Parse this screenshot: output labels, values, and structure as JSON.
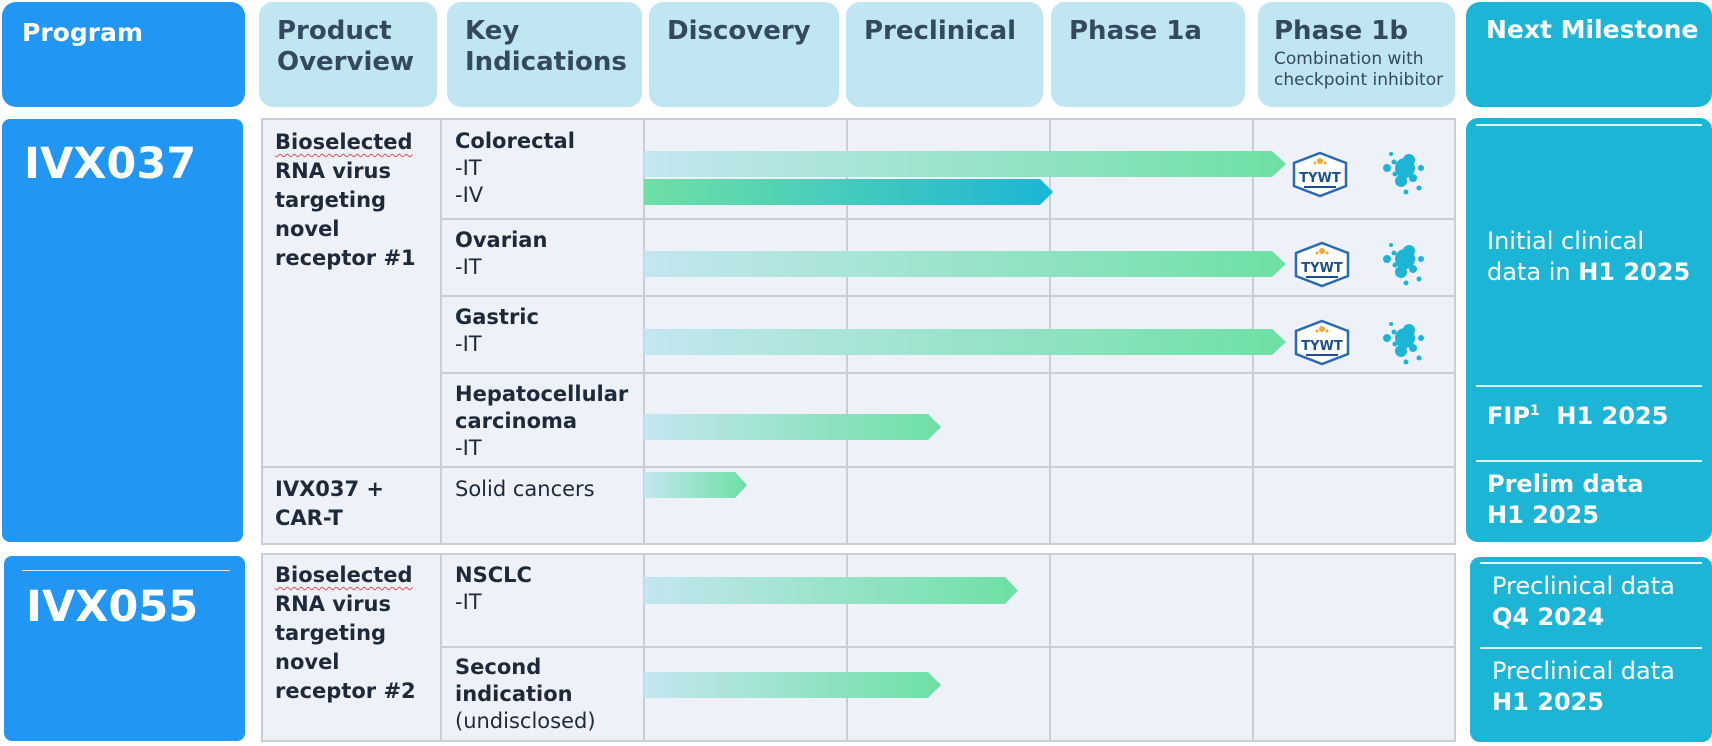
{
  "header": {
    "program": "Program",
    "product_overview": "Product Overview",
    "key_indications": "Key Indications",
    "discovery": "Discovery",
    "preclinical": "Preclinical",
    "phase1a": "Phase 1a",
    "phase1b": "Phase 1b",
    "phase1b_sub": "Combination with checkpoint inhibitor",
    "next_milestone": "Next Milestone"
  },
  "programs": [
    {
      "name": "IVX037",
      "overview": [
        "Bioselected",
        "RNA virus",
        "targeting",
        "novel",
        "receptor #1"
      ],
      "combo": [
        "IVX037 +",
        "CAR-T"
      ],
      "indications": [
        {
          "name": "Colorectal",
          "routes": [
            "-IT",
            "-IV"
          ]
        },
        {
          "name": "Ovarian",
          "routes": [
            "-IT"
          ]
        },
        {
          "name": "Gastric",
          "routes": [
            "-IT"
          ]
        },
        {
          "name": "Hepatocellular carcinoma",
          "line1": "Hepatocellular",
          "line2": "carcinoma",
          "routes": [
            "-IT"
          ]
        },
        {
          "name": "Solid cancers",
          "routes": []
        }
      ],
      "milestones": {
        "initial_line1": "Initial clinical",
        "initial_line2": "data in ",
        "initial_bold": "H1 2025",
        "fip_label": "FIP",
        "fip_sup": "1",
        "fip_date": "H1 2025",
        "prelim_line1": "Prelim data",
        "prelim_line2": "H1 2025"
      }
    },
    {
      "name": "IVX055",
      "overview": [
        "Bioselected",
        "RNA virus",
        "targeting",
        "novel",
        "receptor #2"
      ],
      "indications": [
        {
          "name": "NSCLC",
          "routes": [
            "-IT"
          ]
        },
        {
          "name": "Second indication",
          "line1": "Second",
          "line2": "indication",
          "note": "(undisclosed)"
        }
      ],
      "milestones": {
        "m1_line1": "Preclinical data",
        "m1_line2": "Q4 2024",
        "m2_line1": "Preclinical data",
        "m2_line2": "H1 2025"
      }
    }
  ],
  "logos": {
    "trial_logo_text": "TYWT",
    "trial_logo_icon": "tywt-badge-logo",
    "partner_icon": "teal-bubbles-logo"
  },
  "colors": {
    "program_blue": "#2196f3",
    "header_light": "#bfe6f1",
    "milestone_teal": "#1cb5d6",
    "bar_start": "#c4e6f0",
    "bar_end": "#6ee0a4",
    "iv_bar_end": "#1cb5d6"
  }
}
